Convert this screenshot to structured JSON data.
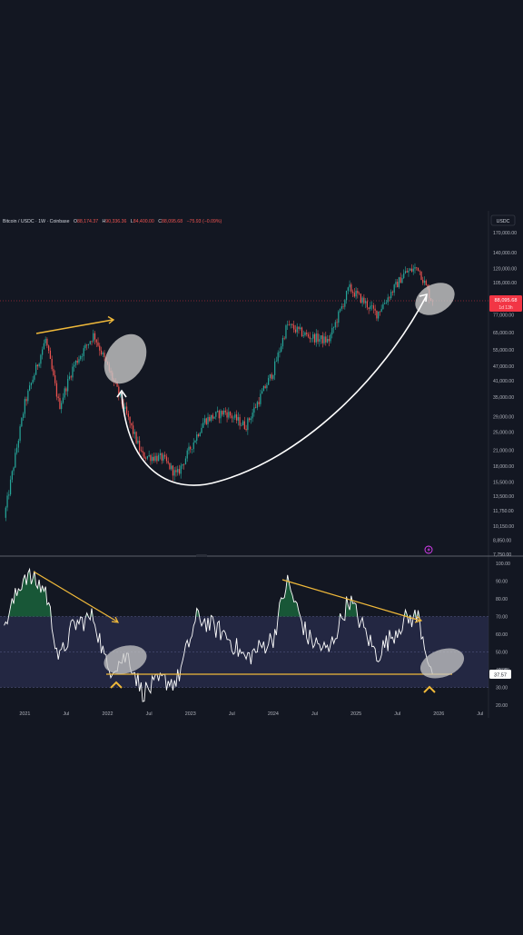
{
  "header": {
    "symbol": "Bitcoin / USDC · 1W · Coinbase",
    "o_label": "O",
    "o_value": "88,174.37",
    "h_label": "H",
    "h_value": "90,336.36",
    "l_label": "L",
    "l_value": "84,400.00",
    "c_label": "C",
    "c_value": "88,095.68",
    "change": "−75.93 (−0.09%)"
  },
  "currency_label": "USDC",
  "price_badge": {
    "value": "88,095.68",
    "countdown": "1d 13h"
  },
  "rsi_badge": {
    "prev": "40.00",
    "value": "37.57"
  },
  "price_axis_labels": [
    "170,000.00",
    "140,000.00",
    "120,000.00",
    "105,000.00",
    "77,000.00",
    "65,000.00",
    "55,000.00",
    "47,000.00",
    "41,000.00",
    "35,000.00",
    "29,000.00",
    "25,000.00",
    "21,000.00",
    "18,000.00",
    "15,500.00",
    "13,500.00",
    "11,750.00",
    "10,150.00",
    "8,850.00",
    "7,750.00"
  ],
  "rsi_axis_labels": [
    "100.00",
    "90.00",
    "80.00",
    "70.00",
    "60.00",
    "50.00",
    "40.00",
    "30.00",
    "20.00"
  ],
  "time_labels": [
    "2021",
    "Jul",
    "2022",
    "Jul",
    "2023",
    "Jul",
    "2024",
    "Jul",
    "2025",
    "Jul",
    "2026",
    "Jul"
  ],
  "colors": {
    "background": "#131722",
    "up_candle": "#26a69a",
    "down_candle": "#ef5350",
    "rsi_line": "#ffffff",
    "rsi_band": "#2a2e4d",
    "trendline": "#f0b93a",
    "arc_arrow": "#ffffff",
    "highlight": "#c8c8c8",
    "price_badge": "#f23645"
  },
  "icons": {
    "alert": "lightning-bolt-icon"
  },
  "chart_data": [
    {
      "type": "candlestick",
      "title": "Bitcoin / USDC · 1W · Coinbase",
      "scale": "log",
      "ylim": [
        7750,
        170000
      ],
      "y_ticks": [
        170000,
        140000,
        120000,
        105000,
        77000,
        65000,
        55000,
        47000,
        41000,
        35000,
        29000,
        25000,
        21000,
        18000,
        15500,
        13500,
        11750,
        10150,
        8850,
        7750
      ],
      "x_ticks": [
        "2021",
        "Jul",
        "2022",
        "Jul",
        "2023",
        "Jul",
        "2024",
        "Jul",
        "2025",
        "Jul",
        "2026",
        "Jul"
      ],
      "last_close": 88095.68,
      "keypoints": [
        {
          "date": "2020-10",
          "price": 11000
        },
        {
          "date": "2021-01",
          "price": 33000
        },
        {
          "date": "2021-04",
          "price": 61000
        },
        {
          "date": "2021-06",
          "price": 32000
        },
        {
          "date": "2021-08",
          "price": 47000
        },
        {
          "date": "2021-11",
          "price": 64000
        },
        {
          "date": "2022-02",
          "price": 40000
        },
        {
          "date": "2022-06",
          "price": 20000
        },
        {
          "date": "2022-09",
          "price": 19500
        },
        {
          "date": "2022-11",
          "price": 16500
        },
        {
          "date": "2023-03",
          "price": 28000
        },
        {
          "date": "2023-06",
          "price": 30500
        },
        {
          "date": "2023-09",
          "price": 26500
        },
        {
          "date": "2024-01",
          "price": 45000
        },
        {
          "date": "2024-03",
          "price": 70000
        },
        {
          "date": "2024-06",
          "price": 63000
        },
        {
          "date": "2024-09",
          "price": 60000
        },
        {
          "date": "2024-12",
          "price": 100000
        },
        {
          "date": "2025-04",
          "price": 78000
        },
        {
          "date": "2025-08",
          "price": 115000
        },
        {
          "date": "2025-10",
          "price": 122000
        },
        {
          "date": "2025-12",
          "price": 88000
        }
      ]
    },
    {
      "type": "line",
      "title": "RSI",
      "ylim": [
        20,
        100
      ],
      "y_ticks": [
        100,
        90,
        80,
        70,
        60,
        50,
        40,
        30,
        20
      ],
      "band": [
        30,
        70
      ],
      "last_value": 37.57,
      "keypoints": [
        {
          "date": "2020-10",
          "value": 65
        },
        {
          "date": "2021-01",
          "value": 94
        },
        {
          "date": "2021-04",
          "value": 85
        },
        {
          "date": "2021-06",
          "value": 45
        },
        {
          "date": "2021-08",
          "value": 65
        },
        {
          "date": "2021-11",
          "value": 70
        },
        {
          "date": "2022-01",
          "value": 40
        },
        {
          "date": "2022-04",
          "value": 48
        },
        {
          "date": "2022-06",
          "value": 27
        },
        {
          "date": "2022-09",
          "value": 34
        },
        {
          "date": "2022-11",
          "value": 33
        },
        {
          "date": "2023-02",
          "value": 70
        },
        {
          "date": "2023-06",
          "value": 60
        },
        {
          "date": "2023-09",
          "value": 46
        },
        {
          "date": "2024-01",
          "value": 58
        },
        {
          "date": "2024-03",
          "value": 90
        },
        {
          "date": "2024-06",
          "value": 58
        },
        {
          "date": "2024-09",
          "value": 50
        },
        {
          "date": "2024-12",
          "value": 80
        },
        {
          "date": "2025-04",
          "value": 48
        },
        {
          "date": "2025-08",
          "value": 68
        },
        {
          "date": "2025-10",
          "value": 70
        },
        {
          "date": "2025-12",
          "value": 37.57
        }
      ]
    }
  ]
}
